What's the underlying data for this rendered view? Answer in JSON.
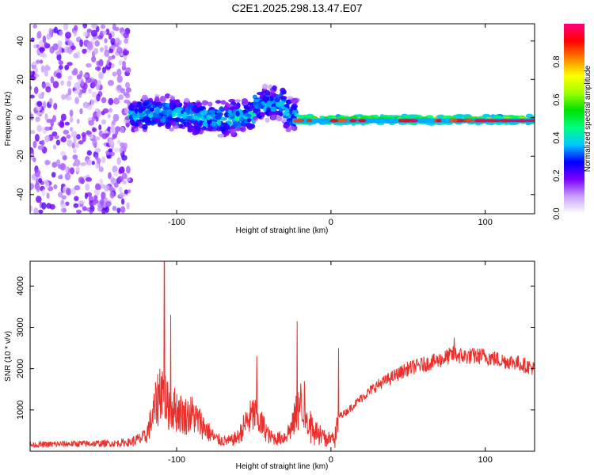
{
  "title": "C2E1.2025.298.13.47.E07",
  "chart_data": [
    {
      "type": "heatmap",
      "name": "spectrogram",
      "xlabel": "Height of straight line (km)",
      "ylabel": "Frequency (Hz)",
      "xlim": [
        -195,
        132
      ],
      "ylim": [
        -50,
        49
      ],
      "xticks": [
        -100,
        0,
        100
      ],
      "yticks": [
        -40,
        -20,
        0,
        20,
        40
      ],
      "colorbar": {
        "label": "Normalized spectral amplitude",
        "range": [
          0,
          1
        ],
        "ticks": [
          0.0,
          0.2,
          0.4,
          0.6,
          0.8
        ],
        "colors": [
          "#ffffff",
          "#c8a0ff",
          "#7a00ff",
          "#0000ff",
          "#00c8ff",
          "#00ff80",
          "#00e000",
          "#a0ff00",
          "#ffff00",
          "#ff8000",
          "#ff0000",
          "#ff0080"
        ]
      },
      "regions": [
        {
          "x": [
            -195,
            -130
          ],
          "description": "broadband noise",
          "freq_spread": 49,
          "amplitude": 0.1
        },
        {
          "x": [
            -130,
            -22
          ],
          "description": "broad clutter band",
          "freq_center": 2,
          "freq_spread": 8,
          "amplitude": 0.3
        },
        {
          "x": [
            -22,
            132
          ],
          "description": "narrow tone",
          "freq_center": -1,
          "freq_spread": 2,
          "amplitude": 0.65
        }
      ],
      "peak_tone": {
        "x": [
          -25,
          132
        ],
        "freq": -1.5,
        "amplitude": 0.95
      }
    },
    {
      "type": "line",
      "name": "snr",
      "xlabel": "Height of straight line (km)",
      "ylabel": "SNR (10 * v/v)",
      "xlim": [
        -195,
        132
      ],
      "ylim": [
        0,
        4600
      ],
      "xticks": [
        -100,
        0,
        100
      ],
      "yticks": [
        1000,
        2000,
        3000,
        4000
      ],
      "series": [
        {
          "name": "SNR",
          "color": "#e8302c",
          "x": [
            -195,
            -170,
            -140,
            -130,
            -120,
            -115,
            -110,
            -106,
            -100,
            -95,
            -90,
            -85,
            -80,
            -75,
            -70,
            -65,
            -60,
            -55,
            -50,
            -45,
            -42,
            -40,
            -35,
            -30,
            -25,
            -22,
            -18,
            -15,
            -10,
            -5,
            0,
            3,
            5,
            10,
            20,
            30,
            40,
            50,
            60,
            70,
            80,
            85,
            90,
            100,
            110,
            120,
            132
          ],
          "values": [
            150,
            180,
            190,
            220,
            350,
            900,
            1600,
            1100,
            1000,
            850,
            900,
            700,
            500,
            300,
            250,
            250,
            350,
            700,
            900,
            650,
            500,
            350,
            300,
            350,
            600,
            1000,
            1200,
            850,
            500,
            350,
            300,
            400,
            850,
            950,
            1300,
            1600,
            1800,
            2000,
            2100,
            2200,
            2350,
            2300,
            2300,
            2300,
            2200,
            2150,
            2000
          ],
          "spikes": [
            {
              "x": -108,
              "value": 4600
            },
            {
              "x": -104,
              "value": 3300
            },
            {
              "x": -48,
              "value": 2300
            },
            {
              "x": -22,
              "value": 3150
            },
            {
              "x": 5,
              "value": 2500
            },
            {
              "x": 80,
              "value": 2750
            }
          ]
        }
      ]
    }
  ]
}
